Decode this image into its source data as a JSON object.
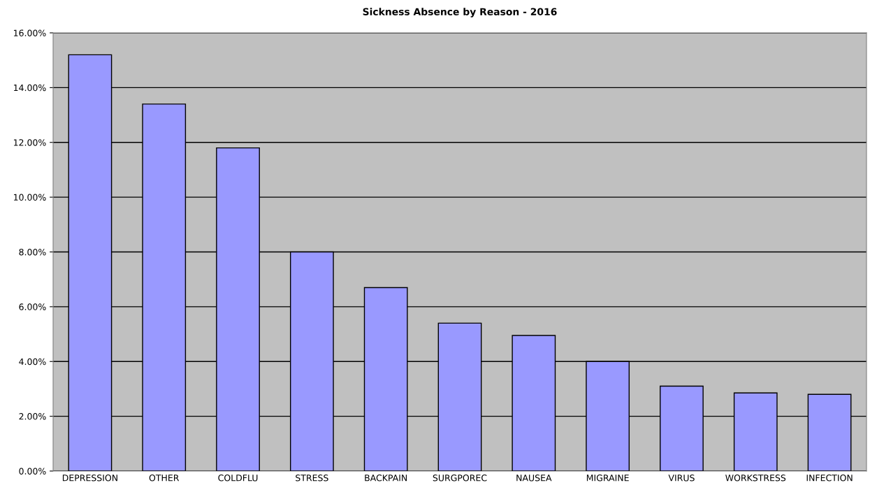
{
  "chart_data": {
    "type": "bar",
    "title": "Sickness Absence by Reason - 2016",
    "categories": [
      "DEPRESSION",
      "OTHER",
      "COLDFLU",
      "STRESS",
      "BACKPAIN",
      "SURGPOREC",
      "NAUSEA",
      "MIGRAINE",
      "VIRUS",
      "WORKSTRESS",
      "INFECTION"
    ],
    "values": [
      15.2,
      13.4,
      11.8,
      8.0,
      6.7,
      5.4,
      4.95,
      4.0,
      3.1,
      2.85,
      2.8
    ],
    "color": "#9999ff",
    "ylim": [
      0,
      16
    ],
    "yticks": [
      {
        "value": 0,
        "label": "0.00%"
      },
      {
        "value": 2,
        "label": "2.00%"
      },
      {
        "value": 4,
        "label": "4.00%"
      },
      {
        "value": 6,
        "label": "6.00%"
      },
      {
        "value": 8,
        "label": "8.00%"
      },
      {
        "value": 10,
        "label": "10.00%"
      },
      {
        "value": 12,
        "label": "12.00%"
      },
      {
        "value": 14,
        "label": "14.00%"
      },
      {
        "value": 16,
        "label": "16.00%"
      }
    ],
    "grid": "y"
  }
}
